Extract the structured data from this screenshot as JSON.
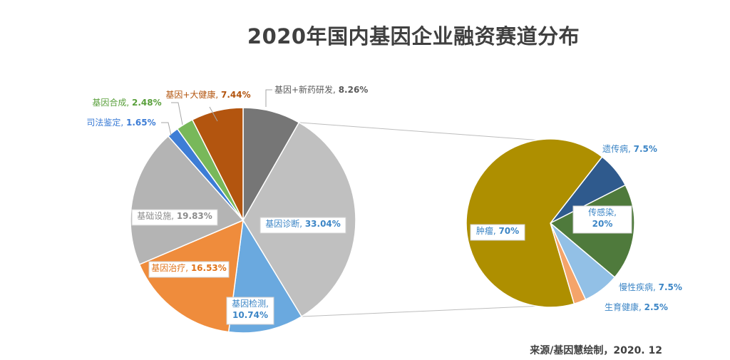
{
  "title": "2020年国内基因企业融资赛道分布",
  "source": "来源/基因慧绘制，2020. 12",
  "chart_data": [
    {
      "type": "pie",
      "slices": [
        {
          "label": "基因+新药研发",
          "value": 8.26,
          "value_text": "8.26%",
          "color": "#767676",
          "label_color": "#595959"
        },
        {
          "label": "基因诊断",
          "value": 33.04,
          "value_text": "33.04%",
          "color": "#c0c0c0",
          "label_color": "#3d86c6"
        },
        {
          "label": "基因检测",
          "value_text": "10.74%",
          "value": 10.74,
          "color": "#6aa9df",
          "label_color": "#3d86c6"
        },
        {
          "label": "基因治疗",
          "value": 16.53,
          "value_text": "16.53%",
          "color": "#ef8c3c",
          "label_color": "#e0731a"
        },
        {
          "label": "基础设施",
          "value": 19.83,
          "value_text": "19.83%",
          "color": "#b4b4b4",
          "label_color": "#8c8c8c"
        },
        {
          "label": "司法鉴定",
          "value": 1.65,
          "value_text": "1.65%",
          "color": "#3d7dd6",
          "label_color": "#3d7dd6"
        },
        {
          "label": "基因合成",
          "value": 2.48,
          "value_text": "2.48%",
          "color": "#78b85a",
          "label_color": "#5aa03c"
        },
        {
          "label": "基因+大健康",
          "value": 7.44,
          "value_text": "7.44%",
          "color": "#b3550f",
          "label_color": "#b3550f"
        }
      ]
    },
    {
      "type": "pie",
      "slices": [
        {
          "label": "遗传病",
          "value": 7.5,
          "value_text": "7.5%",
          "color": "#2f5a8d",
          "label_color": "#3d86c6"
        },
        {
          "label": "传感染",
          "value": 20,
          "value_text": "20%",
          "color": "#4f7a3c",
          "label_color": "#3d86c6"
        },
        {
          "label": "慢性疾病",
          "value": 7.5,
          "value_text": "7.5%",
          "color": "#92c0e6",
          "label_color": "#3d86c6"
        },
        {
          "label": "生育健康",
          "value": 2.5,
          "value_text": "2.5%",
          "color": "#f4a46a",
          "label_color": "#3d86c6"
        },
        {
          "label": "肿瘤",
          "value": 70,
          "value_text": "70%",
          "color": "#ae8f00",
          "label_color": "#3d86c6"
        }
      ]
    }
  ]
}
